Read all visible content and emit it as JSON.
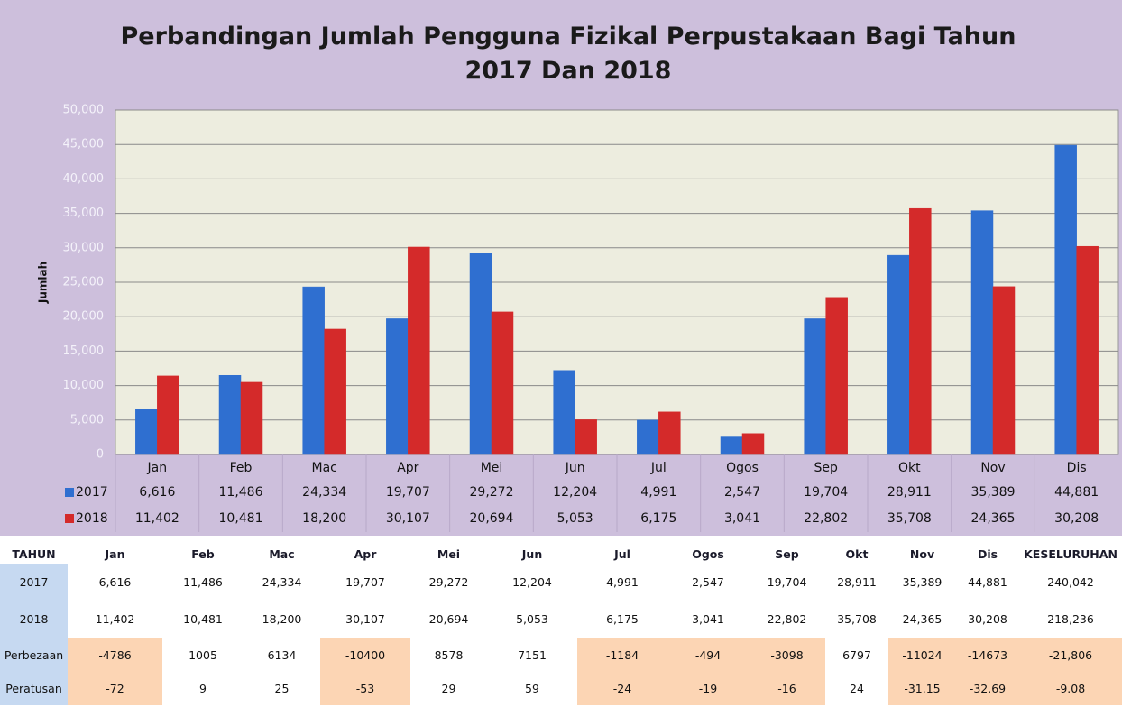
{
  "chart_data": {
    "type": "bar",
    "title": "Perbandingan Jumlah Pengguna Fizikal Perpustakaan Bagi Tahun 2017 Dan 2018",
    "ylabel": "Jumlah",
    "categories": [
      "Jan",
      "Feb",
      "Mac",
      "Apr",
      "Mei",
      "Jun",
      "Jul",
      "Ogos",
      "Sep",
      "Okt",
      "Nov",
      "Dis"
    ],
    "series": [
      {
        "name": "2017",
        "color": "#2f6fd0",
        "values": [
          6616,
          11486,
          24334,
          19707,
          29272,
          12204,
          4991,
          2547,
          19704,
          28911,
          35389,
          44881
        ],
        "value_labels": [
          "6,616",
          "11,486",
          "24,334",
          "19,707",
          "29,272",
          "12,204",
          "4,991",
          "2,547",
          "19,704",
          "28,911",
          "35,389",
          "44,881"
        ]
      },
      {
        "name": "2018",
        "color": "#d42a2a",
        "values": [
          11402,
          10481,
          18200,
          30107,
          20694,
          5053,
          6175,
          3041,
          22802,
          35708,
          24365,
          30208
        ],
        "value_labels": [
          "11,402",
          "10,481",
          "18,200",
          "30,107",
          "20,694",
          "5,053",
          "6,175",
          "3,041",
          "22,802",
          "35,708",
          "24,365",
          "30,208"
        ]
      }
    ],
    "ylim": [
      0,
      50000
    ],
    "yticks": [
      0,
      {
        "value": 5000,
        "label": "5,000"
      },
      {
        "value": 10000,
        "label": "10,000"
      },
      {
        "value": 15000,
        "label": "15,000"
      },
      {
        "value": 20000,
        "label": "20,000"
      },
      {
        "value": 25000,
        "label": "25,000"
      },
      {
        "value": 30000,
        "label": "30,000"
      },
      {
        "value": 35000,
        "label": "35,000"
      },
      {
        "value": 40000,
        "label": "40,000"
      },
      {
        "value": 45000,
        "label": "45,000"
      },
      {
        "value": 50000,
        "label": "50,000"
      }
    ],
    "grid": true
  },
  "table": {
    "header": [
      "TAHUN",
      "Jan",
      "Feb",
      "Mac",
      "Apr",
      "Mei",
      "Jun",
      "Jul",
      "Ogos",
      "Sep",
      "Okt",
      "Nov",
      "Dis",
      "KESELURUHAN"
    ],
    "rows": [
      [
        "2017",
        "6,616",
        "11,486",
        "24,334",
        "19,707",
        "29,272",
        "12,204",
        "4,991",
        "2,547",
        "19,704",
        "28,911",
        "35,389",
        "44,881",
        "240,042"
      ],
      [
        "2018",
        "11,402",
        "10,481",
        "18,200",
        "30,107",
        "20,694",
        "5,053",
        "6,175",
        "3,041",
        "22,802",
        "35,708",
        "24,365",
        "30,208",
        "218,236"
      ],
      [
        "Perbezaan",
        "-4786",
        "1005",
        "6134",
        "-10400",
        "8578",
        "7151",
        "-1184",
        "-494",
        "-3098",
        "6797",
        "-11024",
        "-14673",
        "-21,806"
      ],
      [
        "Peratusan",
        "-72",
        "9",
        "25",
        "-53",
        "29",
        "59",
        "-24",
        "-19",
        "-16",
        "24",
        "-31.15",
        "-32.69",
        "-9.08"
      ]
    ]
  }
}
